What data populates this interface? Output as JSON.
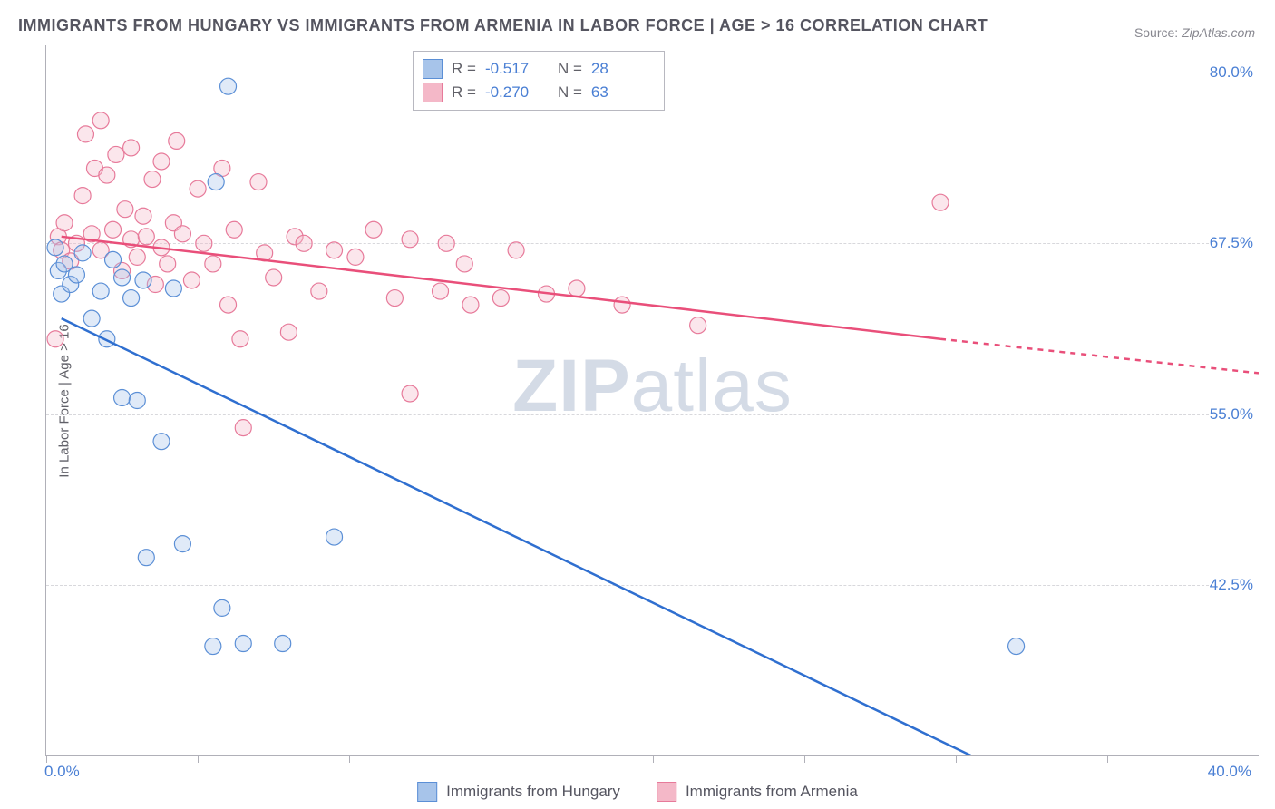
{
  "title": "IMMIGRANTS FROM HUNGARY VS IMMIGRANTS FROM ARMENIA IN LABOR FORCE | AGE > 16 CORRELATION CHART",
  "source_prefix": "Source: ",
  "source_name": "ZipAtlas.com",
  "y_axis_title": "In Labor Force | Age > 16",
  "watermark_bold": "ZIP",
  "watermark_rest": "atlas",
  "chart": {
    "type": "scatter",
    "xlim": [
      0,
      40
    ],
    "ylim": [
      30,
      82
    ],
    "x_axis_min_label": "0.0%",
    "x_axis_max_label": "40.0%",
    "x_ticks": [
      0,
      5,
      10,
      15,
      20,
      25,
      30,
      35
    ],
    "y_ticks": [
      42.5,
      55.0,
      67.5,
      80.0
    ],
    "y_tick_labels": [
      "42.5%",
      "55.0%",
      "67.5%",
      "80.0%"
    ],
    "grid_color": "#d8d8dc",
    "axis_color": "#b0b0b8",
    "background_color": "#ffffff",
    "tick_label_color": "#4a7fd4",
    "marker_radius": 9,
    "line_width": 2.5,
    "series": [
      {
        "name": "Immigrants from Hungary",
        "color_fill": "#a7c4ea",
        "color_stroke": "#5b8fd6",
        "line_color": "#2f6fd0",
        "R": "-0.517",
        "N": "28",
        "trend": {
          "x1": 0.5,
          "y1": 62.0,
          "x2": 30.5,
          "y2": 30.0,
          "dash_after_x": 40
        },
        "points": [
          [
            0.3,
            67.2
          ],
          [
            0.4,
            65.5
          ],
          [
            0.5,
            63.8
          ],
          [
            0.6,
            66.0
          ],
          [
            0.8,
            64.5
          ],
          [
            1.0,
            65.2
          ],
          [
            1.2,
            66.8
          ],
          [
            1.5,
            62.0
          ],
          [
            1.8,
            64.0
          ],
          [
            2.0,
            60.5
          ],
          [
            2.2,
            66.3
          ],
          [
            2.5,
            65.0
          ],
          [
            2.5,
            56.2
          ],
          [
            2.8,
            63.5
          ],
          [
            3.0,
            56.0
          ],
          [
            3.2,
            64.8
          ],
          [
            3.3,
            44.5
          ],
          [
            3.8,
            53.0
          ],
          [
            4.2,
            64.2
          ],
          [
            4.5,
            45.5
          ],
          [
            5.5,
            38.0
          ],
          [
            5.6,
            72.0
          ],
          [
            5.8,
            40.8
          ],
          [
            6.0,
            79.0
          ],
          [
            6.5,
            38.2
          ],
          [
            7.8,
            38.2
          ],
          [
            9.5,
            46.0
          ],
          [
            32.0,
            38.0
          ]
        ]
      },
      {
        "name": "Immigrants from Armenia",
        "color_fill": "#f4b8c8",
        "color_stroke": "#e77a9a",
        "line_color": "#e94f7a",
        "R": "-0.270",
        "N": "63",
        "trend": {
          "x1": 0.5,
          "y1": 68.0,
          "x2": 29.5,
          "y2": 60.5,
          "dash_after_x": 29.5,
          "x2_dash": 40,
          "y2_dash": 58.0
        },
        "points": [
          [
            0.4,
            68.0
          ],
          [
            0.5,
            67.0
          ],
          [
            0.6,
            69.0
          ],
          [
            0.8,
            66.2
          ],
          [
            1.0,
            67.5
          ],
          [
            1.2,
            71.0
          ],
          [
            1.3,
            75.5
          ],
          [
            1.5,
            68.2
          ],
          [
            1.6,
            73.0
          ],
          [
            1.8,
            67.0
          ],
          [
            1.8,
            76.5
          ],
          [
            2.0,
            72.5
          ],
          [
            2.2,
            68.5
          ],
          [
            2.3,
            74.0
          ],
          [
            2.5,
            65.5
          ],
          [
            2.6,
            70.0
          ],
          [
            2.8,
            67.8
          ],
          [
            2.8,
            74.5
          ],
          [
            3.0,
            66.5
          ],
          [
            3.2,
            69.5
          ],
          [
            3.3,
            68.0
          ],
          [
            3.5,
            72.2
          ],
          [
            3.6,
            64.5
          ],
          [
            3.8,
            67.2
          ],
          [
            3.8,
            73.5
          ],
          [
            4.0,
            66.0
          ],
          [
            4.2,
            69.0
          ],
          [
            4.3,
            75.0
          ],
          [
            4.5,
            68.2
          ],
          [
            4.8,
            64.8
          ],
          [
            5.0,
            71.5
          ],
          [
            5.2,
            67.5
          ],
          [
            5.5,
            66.0
          ],
          [
            5.8,
            73.0
          ],
          [
            6.0,
            63.0
          ],
          [
            6.2,
            68.5
          ],
          [
            6.4,
            60.5
          ],
          [
            6.5,
            54.0
          ],
          [
            7.0,
            72.0
          ],
          [
            7.2,
            66.8
          ],
          [
            7.5,
            65.0
          ],
          [
            8.0,
            61.0
          ],
          [
            8.2,
            68.0
          ],
          [
            8.5,
            67.5
          ],
          [
            9.0,
            64.0
          ],
          [
            9.5,
            67.0
          ],
          [
            10.2,
            66.5
          ],
          [
            10.8,
            68.5
          ],
          [
            11.5,
            63.5
          ],
          [
            12.0,
            67.8
          ],
          [
            12.0,
            56.5
          ],
          [
            13.0,
            64.0
          ],
          [
            13.2,
            67.5
          ],
          [
            13.8,
            66.0
          ],
          [
            14.0,
            63.0
          ],
          [
            15.0,
            63.5
          ],
          [
            15.5,
            67.0
          ],
          [
            16.5,
            63.8
          ],
          [
            17.5,
            64.2
          ],
          [
            19.0,
            63.0
          ],
          [
            21.5,
            61.5
          ],
          [
            29.5,
            70.5
          ],
          [
            0.3,
            60.5
          ]
        ]
      }
    ]
  },
  "legend_top": {
    "r_label": "R  =",
    "n_label": "N  ="
  },
  "label_fontsize": 17,
  "title_fontsize": 18
}
